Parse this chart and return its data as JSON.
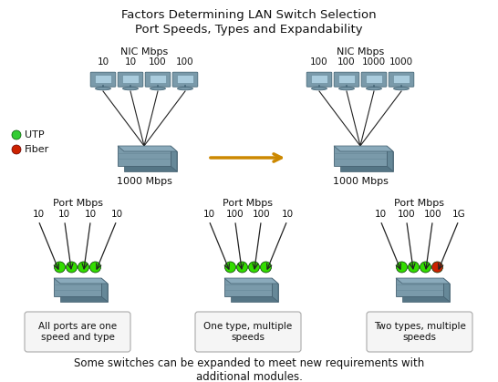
{
  "title_line1": "Factors Determining LAN Switch Selection",
  "title_line2": "Port Speeds, Types and Expandability",
  "bg_color": "#ffffff",
  "legend_utp_color": "#33cc33",
  "legend_fiber_color": "#cc2200",
  "switch_body_color": "#7a9aaa",
  "switch_shadow_color": "#557080",
  "port_green": "#33dd00",
  "port_red": "#cc2200",
  "arrow_orange": "#cc8800",
  "line_color": "#222222",
  "text_color": "#111111",
  "caption_box_color": "#f5f5f5",
  "caption_border_color": "#aaaaaa",
  "top_left_nic_label": "NIC Mbps",
  "top_right_nic_label": "NIC Mbps",
  "top_left_speeds": [
    "10",
    "10",
    "100",
    "100"
  ],
  "top_right_speeds": [
    "100",
    "100",
    "1000",
    "1000"
  ],
  "top_left_switch_label": "1000 Mbps",
  "top_right_switch_label": "1000 Mbps",
  "bottom_port_label": "Port Mbps",
  "bottom1_speeds": [
    "10",
    "10",
    "10",
    "10"
  ],
  "bottom2_speeds": [
    "10",
    "100",
    "100",
    "10"
  ],
  "bottom3_speeds": [
    "10",
    "100",
    "100",
    "1G"
  ],
  "bottom1_port_colors": [
    "green",
    "green",
    "green",
    "green"
  ],
  "bottom2_port_colors": [
    "green",
    "green",
    "green",
    "green"
  ],
  "bottom3_port_colors": [
    "green",
    "green",
    "green",
    "red"
  ],
  "bottom1_caption": "All ports are one\nspeed and type",
  "bottom2_caption": "One type, multiple\nspeeds",
  "bottom3_caption": "Two types, multiple\nspeeds",
  "footer": "Some switches can be expanded to meet new requirements with\nadditional modules.",
  "fig_w": 5.46,
  "fig_h": 4.19,
  "dpi": 100
}
